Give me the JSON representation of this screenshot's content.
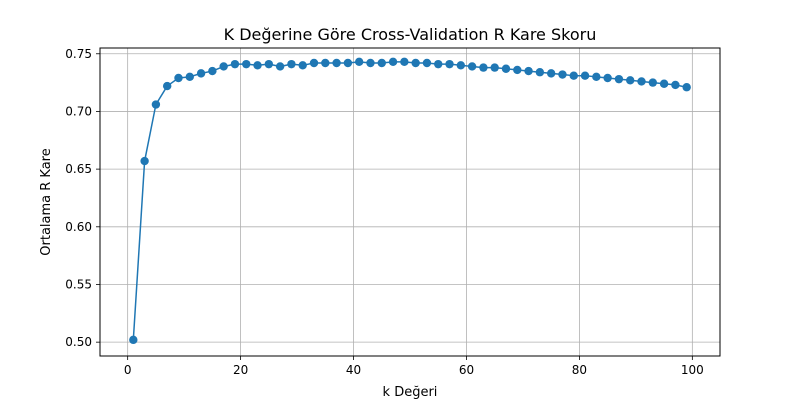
{
  "chart_data": {
    "type": "line",
    "title": "K Değerine Göre Cross-Validation R Kare Skoru",
    "xlabel": "k Değeri",
    "ylabel": "Ortalama R Kare",
    "xlim": [
      -4.9,
      104.9
    ],
    "ylim": [
      0.488,
      0.755
    ],
    "xticks": [
      0,
      20,
      40,
      60,
      80,
      100
    ],
    "yticks": [
      0.5,
      0.55,
      0.6,
      0.65,
      0.7,
      0.75
    ],
    "ytick_labels": [
      "0.50",
      "0.55",
      "0.60",
      "0.65",
      "0.70",
      "0.75"
    ],
    "grid": true,
    "marker": "circle",
    "series": [
      {
        "color": "#1f77b4",
        "x": [
          1,
          3,
          5,
          7,
          9,
          11,
          13,
          15,
          17,
          19,
          21,
          23,
          25,
          27,
          29,
          31,
          33,
          35,
          37,
          39,
          41,
          43,
          45,
          47,
          49,
          51,
          53,
          55,
          57,
          59,
          61,
          63,
          65,
          67,
          69,
          71,
          73,
          75,
          77,
          79,
          81,
          83,
          85,
          87,
          89,
          91,
          93,
          95,
          97,
          99
        ],
        "y": [
          0.502,
          0.657,
          0.706,
          0.722,
          0.729,
          0.73,
          0.733,
          0.735,
          0.739,
          0.741,
          0.741,
          0.74,
          0.741,
          0.739,
          0.741,
          0.74,
          0.742,
          0.742,
          0.742,
          0.742,
          0.743,
          0.742,
          0.742,
          0.743,
          0.743,
          0.742,
          0.742,
          0.741,
          0.741,
          0.74,
          0.739,
          0.738,
          0.738,
          0.737,
          0.736,
          0.735,
          0.734,
          0.733,
          0.732,
          0.731,
          0.731,
          0.73,
          0.729,
          0.728,
          0.727,
          0.726,
          0.725,
          0.724,
          0.723,
          0.721
        ]
      }
    ]
  }
}
